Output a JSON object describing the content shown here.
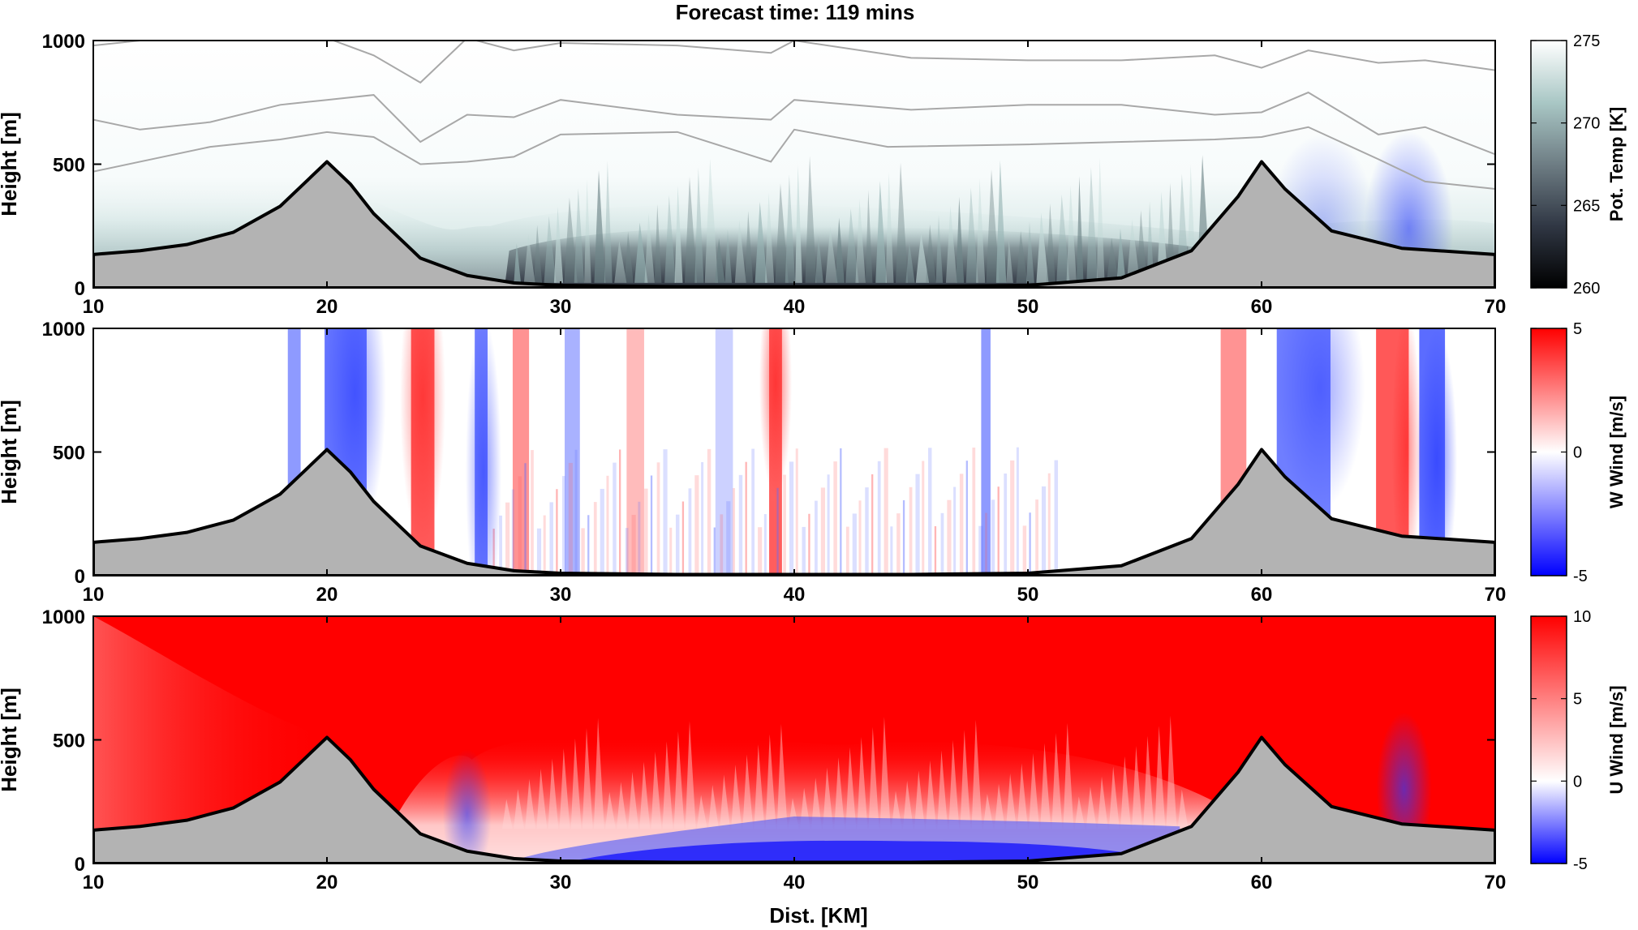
{
  "title": "Forecast time: 119 mins",
  "shared_xlabel": "Dist. [KM]",
  "chart_data": [
    {
      "type": "heatmap",
      "panel": "top",
      "title": "",
      "xlabel": "",
      "ylabel": "Height [m]",
      "xlim": [
        10,
        70
      ],
      "ylim": [
        0,
        1000
      ],
      "xticks": [
        10,
        20,
        30,
        40,
        50,
        60,
        70
      ],
      "yticks": [
        0,
        500,
        1000
      ],
      "colorbar": {
        "label": "Pot. Temp [K]",
        "range": [
          260,
          275
        ],
        "ticks": [
          260,
          265,
          270,
          275
        ],
        "colors": [
          "#000000",
          "#303744",
          "#6e7d84",
          "#a9c7c5",
          "#ffffff"
        ]
      },
      "terrain": {
        "x": [
          10,
          12,
          14,
          16,
          18,
          19,
          20,
          21,
          22,
          24,
          26,
          28,
          30,
          35,
          40,
          45,
          50,
          54,
          57,
          59,
          60,
          61,
          63,
          66,
          70
        ],
        "height": [
          135,
          150,
          175,
          225,
          330,
          420,
          510,
          420,
          300,
          120,
          50,
          20,
          10,
          5,
          5,
          5,
          10,
          40,
          150,
          370,
          510,
          400,
          230,
          160,
          135
        ]
      },
      "contour_lines": [
        {
          "x": [
            10,
            12,
            15,
            18,
            20,
            22,
            24,
            26,
            28,
            30,
            35,
            39,
            40,
            45,
            50,
            54,
            58,
            60,
            62,
            65,
            67,
            70
          ],
          "height": [
            980,
            1000,
            1010,
            1010,
            1010,
            940,
            830,
            1010,
            960,
            990,
            980,
            950,
            1000,
            930,
            920,
            920,
            940,
            890,
            960,
            910,
            920,
            880
          ]
        },
        {
          "x": [
            10,
            12,
            15,
            18,
            20,
            22,
            24,
            26,
            28,
            30,
            35,
            39,
            40,
            45,
            50,
            54,
            58,
            60,
            62,
            65,
            67,
            70
          ],
          "height": [
            680,
            640,
            670,
            740,
            760,
            780,
            590,
            700,
            690,
            760,
            700,
            680,
            760,
            720,
            740,
            740,
            700,
            710,
            790,
            620,
            650,
            540
          ]
        },
        {
          "x": [
            10,
            12,
            15,
            18,
            20,
            22,
            24,
            26,
            28,
            30,
            35,
            39,
            40,
            44,
            50,
            54,
            58,
            60,
            62,
            65,
            67,
            70
          ],
          "height": [
            470,
            510,
            570,
            600,
            630,
            610,
            500,
            510,
            530,
            620,
            630,
            510,
            640,
            570,
            580,
            590,
            600,
            610,
            650,
            520,
            430,
            400
          ]
        }
      ]
    },
    {
      "type": "heatmap",
      "panel": "middle",
      "title": "",
      "xlabel": "",
      "ylabel": "Height [m]",
      "xlim": [
        10,
        70
      ],
      "ylim": [
        0,
        1000
      ],
      "xticks": [
        10,
        20,
        30,
        40,
        50,
        60,
        70
      ],
      "yticks": [
        0,
        500,
        1000
      ],
      "colorbar": {
        "label": "W Wind [m/s]",
        "range": [
          -5,
          5
        ],
        "ticks": [
          -5,
          0,
          5
        ],
        "colors": [
          "#0000ff",
          "#ffffff",
          "#ff0000"
        ]
      },
      "terrain": {
        "x": [
          10,
          12,
          14,
          16,
          18,
          19,
          20,
          21,
          22,
          24,
          26,
          28,
          30,
          35,
          40,
          45,
          50,
          54,
          57,
          59,
          60,
          61,
          63,
          66,
          70
        ],
        "height": [
          135,
          150,
          175,
          225,
          330,
          420,
          510,
          420,
          300,
          120,
          50,
          20,
          10,
          5,
          5,
          5,
          10,
          40,
          150,
          370,
          510,
          400,
          230,
          160,
          135
        ]
      }
    },
    {
      "type": "heatmap",
      "panel": "bottom",
      "title": "",
      "xlabel": "Dist. [KM]",
      "ylabel": "Height [m]",
      "xlim": [
        10,
        70
      ],
      "ylim": [
        0,
        1000
      ],
      "xticks": [
        10,
        20,
        30,
        40,
        50,
        60,
        70
      ],
      "yticks": [
        0,
        500,
        1000
      ],
      "colorbar": {
        "label": "U Wind [m/s]",
        "range": [
          -5,
          10
        ],
        "ticks": [
          -5,
          0,
          5,
          10
        ],
        "colors": [
          "#0000ff",
          "#ffffff",
          "#ff0000"
        ]
      },
      "terrain": {
        "x": [
          10,
          12,
          14,
          16,
          18,
          19,
          20,
          21,
          22,
          24,
          26,
          28,
          30,
          35,
          40,
          45,
          50,
          54,
          57,
          59,
          60,
          61,
          63,
          66,
          70
        ],
        "height": [
          135,
          150,
          175,
          225,
          330,
          420,
          510,
          420,
          300,
          120,
          50,
          20,
          10,
          5,
          5,
          5,
          10,
          40,
          150,
          370,
          510,
          400,
          230,
          160,
          135
        ]
      }
    }
  ]
}
